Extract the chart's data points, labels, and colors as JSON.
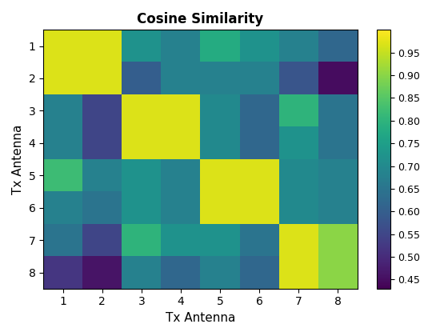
{
  "title": "Cosine Similarity",
  "xlabel": "Tx Antenna",
  "ylabel": "Tx Antenna",
  "colormap": "viridis",
  "vmin": 0.43,
  "vmax": 1.0,
  "xticks": [
    1,
    2,
    3,
    4,
    5,
    6,
    7,
    8
  ],
  "yticks": [
    1,
    2,
    3,
    4,
    5,
    6,
    7,
    8
  ],
  "colorbar_ticks": [
    0.45,
    0.5,
    0.55,
    0.6,
    0.65,
    0.7,
    0.75,
    0.8,
    0.85,
    0.9,
    0.95
  ],
  "data": [
    [
      0.97,
      0.97,
      0.72,
      0.68,
      0.78,
      0.72,
      0.68,
      0.62
    ],
    [
      0.97,
      0.97,
      0.6,
      0.68,
      0.68,
      0.68,
      0.58,
      0.45
    ],
    [
      0.68,
      0.55,
      0.97,
      0.97,
      0.7,
      0.62,
      0.8,
      0.65
    ],
    [
      0.68,
      0.55,
      0.97,
      0.97,
      0.7,
      0.62,
      0.72,
      0.65
    ],
    [
      0.82,
      0.68,
      0.72,
      0.68,
      0.97,
      0.97,
      0.7,
      0.68
    ],
    [
      0.68,
      0.65,
      0.72,
      0.68,
      0.97,
      0.97,
      0.7,
      0.68
    ],
    [
      0.65,
      0.55,
      0.8,
      0.72,
      0.72,
      0.65,
      0.97,
      0.9
    ],
    [
      0.52,
      0.46,
      0.68,
      0.62,
      0.68,
      0.62,
      0.97,
      0.9
    ]
  ]
}
